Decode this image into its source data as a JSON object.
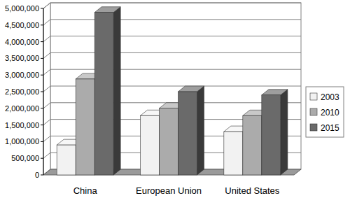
{
  "chart_data": {
    "type": "bar",
    "categories": [
      "China",
      "European Union",
      "United States"
    ],
    "series": [
      {
        "name": "2003",
        "color": "#f2f2f2",
        "values": [
          900000,
          1780000,
          1300000
        ]
      },
      {
        "name": "2010",
        "color": "#ababab",
        "values": [
          2880000,
          2000000,
          1780000
        ]
      },
      {
        "name": "2015",
        "color": "#6a6a6a",
        "values": [
          4880000,
          2500000,
          2400000
        ]
      }
    ],
    "ylim": [
      0,
      5000000
    ],
    "yticks": [
      0,
      {
        "value": 500000,
        "label": "500,000"
      },
      {
        "value": 1000000,
        "label": "1,000,000"
      },
      {
        "value": 1500000,
        "label": "1,500,000"
      },
      {
        "value": 2000000,
        "label": "2,000,000"
      },
      {
        "value": 2500000,
        "label": "2,500,000"
      },
      {
        "value": 3000000,
        "label": "3,000,000"
      },
      {
        "value": 3500000,
        "label": "3,500,000"
      },
      {
        "value": 4000000,
        "label": "4,000,000"
      },
      {
        "value": 4500000,
        "label": "4,500,000"
      },
      {
        "value": 5000000,
        "label": "5,000,000"
      }
    ],
    "grid": true,
    "legend": "right"
  }
}
